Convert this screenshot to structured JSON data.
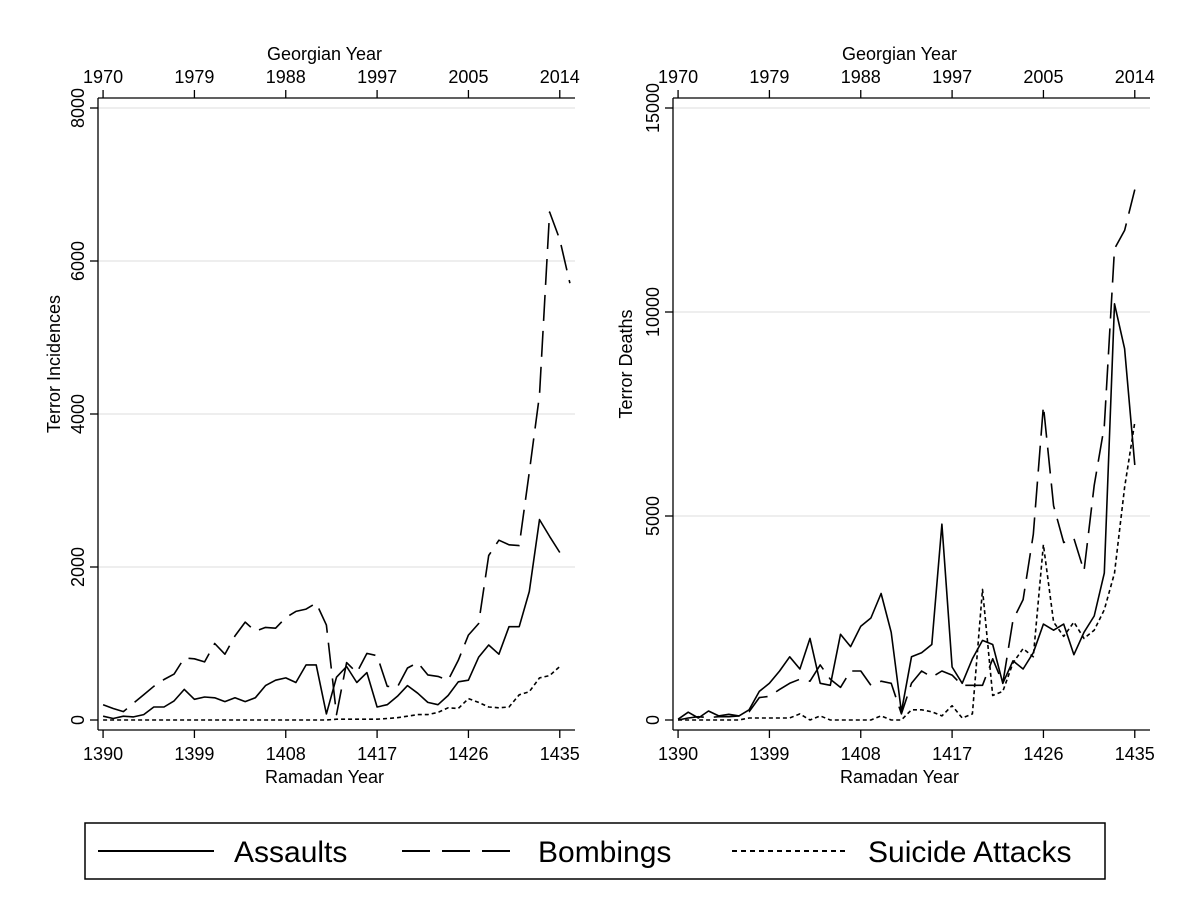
{
  "chart_data": [
    {
      "type": "line",
      "panel": "left",
      "ylabel": "Terror Incidences",
      "xlabel": "Ramadan Year",
      "x2label": "Georgian Year",
      "ylim": [
        0,
        8000
      ],
      "xlim": [
        1389.5,
        1436.5
      ],
      "yticks": [
        0,
        2000,
        4000,
        6000,
        8000
      ],
      "xticks": [
        1390,
        1399,
        1408,
        1417,
        1426,
        1435
      ],
      "x2ticks": [
        {
          "label": "1970",
          "ramadan": 1390
        },
        {
          "label": "1979",
          "ramadan": 1399
        },
        {
          "label": "1988",
          "ramadan": 1408
        },
        {
          "label": "1997",
          "ramadan": 1417
        },
        {
          "label": "2005",
          "ramadan": 1426
        },
        {
          "label": "2014",
          "ramadan": 1435
        }
      ],
      "grid": true,
      "x": [
        1390,
        1391,
        1392,
        1393,
        1394,
        1395,
        1396,
        1397,
        1398,
        1399,
        1400,
        1401,
        1402,
        1403,
        1404,
        1405,
        1406,
        1407,
        1408,
        1409,
        1410,
        1411,
        1412,
        1413,
        1414,
        1415,
        1416,
        1417,
        1418,
        1419,
        1420,
        1421,
        1422,
        1423,
        1424,
        1425,
        1426,
        1427,
        1428,
        1429,
        1430,
        1431,
        1432,
        1433,
        1434,
        1435,
        1436
      ],
      "series": [
        {
          "name": "Assaults",
          "style": "solid",
          "values": [
            50,
            20,
            50,
            40,
            70,
            170,
            170,
            250,
            400,
            270,
            300,
            290,
            240,
            290,
            240,
            290,
            450,
            520,
            550,
            490,
            720,
            720,
            80,
            560,
            700,
            490,
            620,
            170,
            200,
            310,
            450,
            350,
            230,
            200,
            320,
            500,
            520,
            820,
            980,
            860,
            1220,
            1220,
            1680,
            2620,
            2400,
            2190,
            null
          ]
        },
        {
          "name": "Bombings",
          "style": "dash",
          "values": [
            200,
            150,
            110,
            220,
            330,
            440,
            530,
            600,
            810,
            800,
            760,
            1000,
            860,
            1100,
            1280,
            1160,
            1210,
            1200,
            1340,
            1420,
            1450,
            1530,
            1240,
            70,
            750,
            620,
            870,
            840,
            440,
            430,
            680,
            750,
            590,
            570,
            520,
            780,
            1110,
            1260,
            2150,
            2350,
            2290,
            2280,
            3240,
            4250,
            6640,
            6280,
            5710
          ]
        },
        {
          "name": "Suicide Attacks",
          "style": "dot",
          "values": [
            0,
            0,
            0,
            0,
            0,
            0,
            0,
            0,
            0,
            0,
            0,
            0,
            0,
            0,
            0,
            0,
            0,
            0,
            0,
            0,
            0,
            0,
            0,
            10,
            10,
            10,
            10,
            10,
            20,
            30,
            50,
            70,
            70,
            100,
            160,
            150,
            280,
            230,
            170,
            160,
            170,
            330,
            370,
            550,
            580,
            700,
            null
          ]
        }
      ]
    },
    {
      "type": "line",
      "panel": "right",
      "ylabel": "Terror Deaths",
      "xlabel": "Ramadan Year",
      "x2label": "Georgian Year",
      "ylim": [
        0,
        15000
      ],
      "xlim": [
        1389.5,
        1436.5
      ],
      "yticks": [
        0,
        5000,
        10000,
        15000
      ],
      "xticks": [
        1390,
        1399,
        1408,
        1417,
        1426,
        1435
      ],
      "x2ticks": [
        {
          "label": "1970",
          "ramadan": 1390
        },
        {
          "label": "1979",
          "ramadan": 1399
        },
        {
          "label": "1988",
          "ramadan": 1408
        },
        {
          "label": "1997",
          "ramadan": 1417
        },
        {
          "label": "2005",
          "ramadan": 1426
        },
        {
          "label": "2014",
          "ramadan": 1435
        }
      ],
      "grid": true,
      "x": [
        1390,
        1391,
        1392,
        1393,
        1394,
        1395,
        1396,
        1397,
        1398,
        1399,
        1400,
        1401,
        1402,
        1403,
        1404,
        1405,
        1406,
        1407,
        1408,
        1409,
        1410,
        1411,
        1412,
        1413,
        1414,
        1415,
        1416,
        1417,
        1418,
        1419,
        1420,
        1421,
        1422,
        1423,
        1424,
        1425,
        1426,
        1427,
        1428,
        1429,
        1430,
        1431,
        1432,
        1433,
        1434,
        1435,
        1436
      ],
      "series": [
        {
          "name": "Assaults",
          "style": "solid",
          "values": [
            20,
            190,
            50,
            220,
            100,
            140,
            100,
            250,
            700,
            900,
            1200,
            1550,
            1250,
            2000,
            900,
            850,
            2100,
            1800,
            2300,
            2500,
            3100,
            2150,
            200,
            1550,
            1650,
            1850,
            4800,
            1300,
            900,
            1500,
            1950,
            1850,
            900,
            1450,
            1250,
            1650,
            2350,
            2200,
            2350,
            1600,
            2150,
            2550,
            3600,
            10200,
            9100,
            6250,
            null
          ]
        },
        {
          "name": "Bombings",
          "style": "dash",
          "values": [
            0,
            50,
            80,
            60,
            80,
            80,
            100,
            200,
            550,
            580,
            750,
            900,
            1000,
            950,
            1350,
            1000,
            800,
            1200,
            1200,
            850,
            950,
            900,
            150,
            900,
            1200,
            1050,
            1200,
            1100,
            850,
            850,
            850,
            1500,
            900,
            2450,
            2950,
            4550,
            7700,
            5250,
            4350,
            4450,
            3650,
            5750,
            7200,
            11550,
            12000,
            13000,
            null
          ]
        },
        {
          "name": "Suicide Attacks",
          "style": "dot",
          "values": [
            0,
            0,
            0,
            0,
            0,
            0,
            0,
            50,
            50,
            50,
            50,
            50,
            150,
            0,
            100,
            0,
            0,
            0,
            0,
            0,
            100,
            0,
            0,
            250,
            250,
            200,
            100,
            350,
            50,
            150,
            3200,
            600,
            700,
            1400,
            1750,
            1550,
            4300,
            2400,
            2050,
            2400,
            2000,
            2200,
            2700,
            3600,
            5700,
            7300,
            null
          ]
        }
      ]
    }
  ],
  "legend": {
    "items": [
      {
        "name": "Assaults",
        "style": "solid"
      },
      {
        "name": "Bombings",
        "style": "dash"
      },
      {
        "name": "Suicide Attacks",
        "style": "dot"
      }
    ],
    "placement": "bottom"
  },
  "colors": {
    "line": "#000000",
    "grid": "#dcdcdc",
    "background": "#ffffff"
  }
}
